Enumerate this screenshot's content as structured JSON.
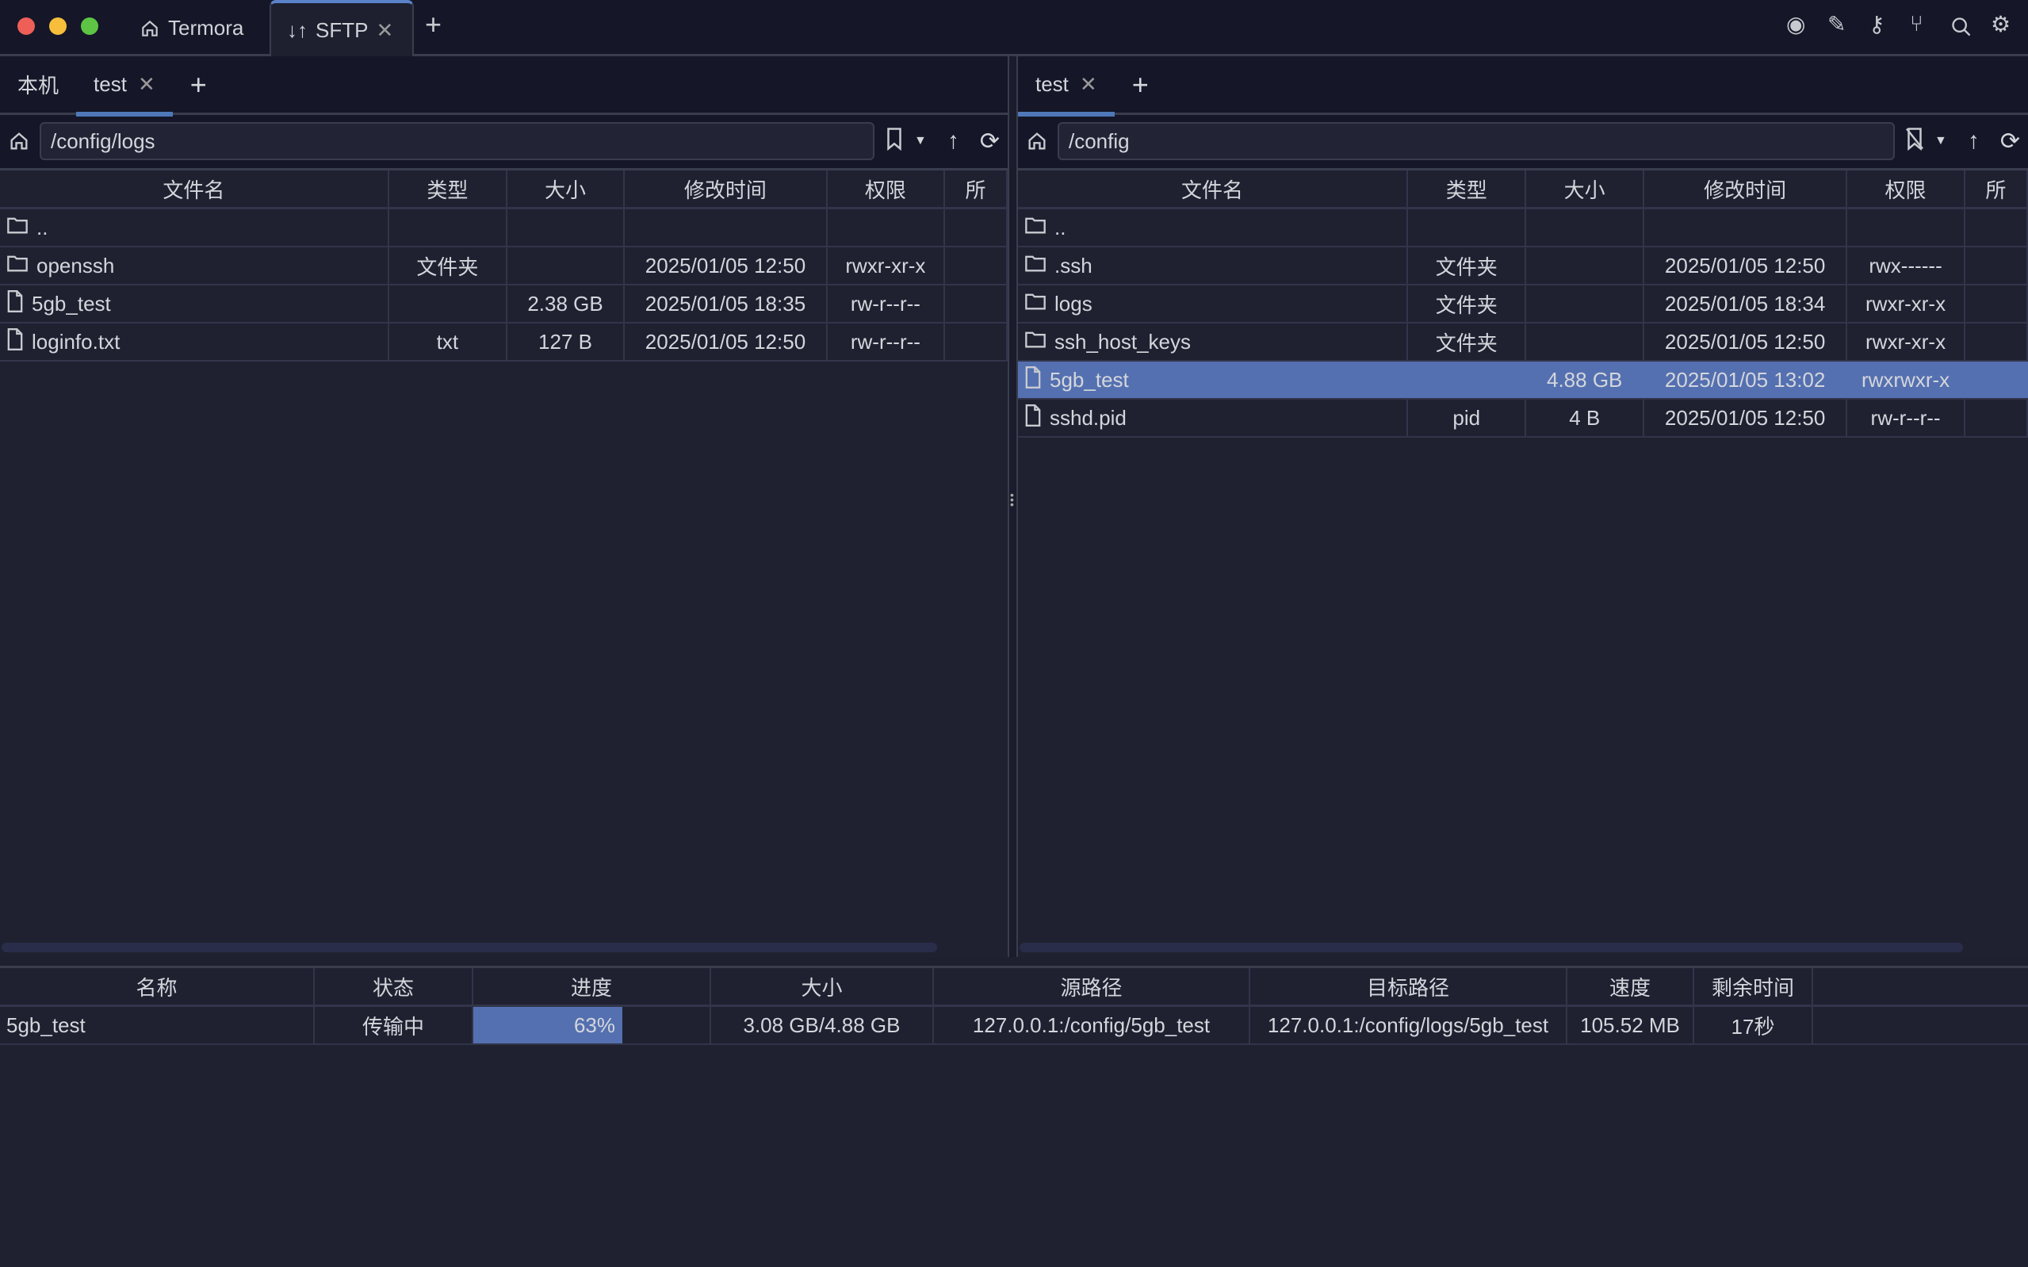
{
  "window": {
    "tabs": [
      {
        "label": "Termora",
        "icon": "home-icon"
      },
      {
        "label": "SFTP",
        "icon": "transfer-arrows-icon",
        "active": true
      }
    ],
    "toolbar_icons": [
      "record-icon",
      "pencil-icon",
      "key-icon",
      "git-branch-icon",
      "search-icon",
      "gear-icon"
    ]
  },
  "left": {
    "tabs": [
      {
        "label": "本机"
      },
      {
        "label": "test",
        "active": true
      }
    ],
    "path": "/config/logs",
    "columns": [
      "文件名",
      "类型",
      "大小",
      "修改时间",
      "权限",
      "所"
    ],
    "rows": [
      {
        "name": "..",
        "type": "",
        "size": "",
        "mtime": "",
        "perm": "",
        "icon": "folder"
      },
      {
        "name": "openssh",
        "type": "文件夹",
        "size": "",
        "mtime": "2025/01/05 12:50",
        "perm": "rwxr-xr-x",
        "icon": "folder"
      },
      {
        "name": "5gb_test",
        "type": "",
        "size": "2.38 GB",
        "mtime": "2025/01/05 18:35",
        "perm": "rw-r--r--",
        "icon": "file"
      },
      {
        "name": "loginfo.txt",
        "type": "txt",
        "size": "127 B",
        "mtime": "2025/01/05 12:50",
        "perm": "rw-r--r--",
        "icon": "file"
      }
    ]
  },
  "right": {
    "tabs": [
      {
        "label": "test",
        "active": true
      }
    ],
    "path": "/config",
    "columns": [
      "文件名",
      "类型",
      "大小",
      "修改时间",
      "权限",
      "所"
    ],
    "rows": [
      {
        "name": "..",
        "type": "",
        "size": "",
        "mtime": "",
        "perm": "",
        "icon": "folder"
      },
      {
        "name": ".ssh",
        "type": "文件夹",
        "size": "",
        "mtime": "2025/01/05 12:50",
        "perm": "rwx------",
        "icon": "folder"
      },
      {
        "name": "logs",
        "type": "文件夹",
        "size": "",
        "mtime": "2025/01/05 18:34",
        "perm": "rwxr-xr-x",
        "icon": "folder"
      },
      {
        "name": "ssh_host_keys",
        "type": "文件夹",
        "size": "",
        "mtime": "2025/01/05 12:50",
        "perm": "rwxr-xr-x",
        "icon": "folder"
      },
      {
        "name": "5gb_test",
        "type": "",
        "size": "4.88 GB",
        "mtime": "2025/01/05 13:02",
        "perm": "rwxrwxr-x",
        "icon": "file",
        "selected": true
      },
      {
        "name": "sshd.pid",
        "type": "pid",
        "size": "4 B",
        "mtime": "2025/01/05 12:50",
        "perm": "rw-r--r--",
        "icon": "file"
      }
    ]
  },
  "transfers": {
    "columns": [
      "名称",
      "状态",
      "进度",
      "大小",
      "源路径",
      "目标路径",
      "速度",
      "剩余时间"
    ],
    "rows": [
      {
        "name": "5gb_test",
        "status": "传输中",
        "progress": 63,
        "progress_label": "63%",
        "size": "3.08 GB/4.88 GB",
        "source": "127.0.0.1:/config/5gb_test",
        "target": "127.0.0.1:/config/logs/5gb_test",
        "speed": "105.52 MB",
        "remaining": "17秒"
      }
    ]
  },
  "colors": {
    "accent": "#5470b0",
    "titlebar": "#151728",
    "table": "#1f2131"
  }
}
